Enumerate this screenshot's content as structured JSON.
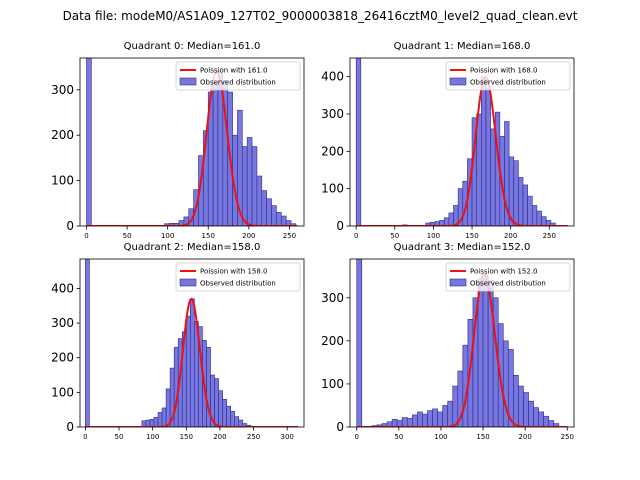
{
  "figure_title": "Data file: modeM0/AS1A09_127T02_9000003818_26416cztM0_level2_quad_clean.evt",
  "colors": {
    "bar_fill": "#7777dd",
    "bar_edge": "#2a2a90",
    "poisson_line": "#ee1111"
  },
  "chart_data": [
    {
      "type": "bar+line",
      "title": "Quadrant 0: Median=161.0",
      "legend": [
        "Poission with 161.0",
        "Observed distribution"
      ],
      "legend_position": "upper-right",
      "median": 161,
      "xlim": [
        -8,
        268
      ],
      "ylim": [
        0,
        370
      ],
      "xticks": [
        0,
        50,
        100,
        150,
        200,
        250
      ],
      "yticks": [
        0,
        100,
        200,
        300
      ],
      "bin_width": 6,
      "hist": [
        [
          0,
          370
        ],
        [
          96,
          5
        ],
        [
          102,
          6
        ],
        [
          108,
          6
        ],
        [
          114,
          12
        ],
        [
          120,
          20
        ],
        [
          126,
          38
        ],
        [
          132,
          80
        ],
        [
          138,
          155
        ],
        [
          144,
          210
        ],
        [
          150,
          295
        ],
        [
          156,
          315
        ],
        [
          162,
          340
        ],
        [
          168,
          320
        ],
        [
          174,
          295
        ],
        [
          180,
          200
        ],
        [
          186,
          255
        ],
        [
          192,
          175
        ],
        [
          198,
          195
        ],
        [
          204,
          175
        ],
        [
          210,
          110
        ],
        [
          216,
          78
        ],
        [
          222,
          60
        ],
        [
          228,
          45
        ],
        [
          234,
          30
        ],
        [
          240,
          22
        ],
        [
          246,
          12
        ],
        [
          252,
          5
        ]
      ]
    },
    {
      "type": "bar+line",
      "title": "Quadrant 1: Median=168.0",
      "legend": [
        "Poission with 168.0",
        "Observed distribution"
      ],
      "legend_position": "upper-right",
      "median": 168,
      "xlim": [
        -8,
        282
      ],
      "ylim": [
        0,
        450
      ],
      "xticks": [
        0,
        50,
        100,
        150,
        200,
        250
      ],
      "yticks": [
        0,
        100,
        200,
        300,
        400
      ],
      "bin_width": 6,
      "hist": [
        [
          0,
          450
        ],
        [
          60,
          3
        ],
        [
          90,
          8
        ],
        [
          96,
          10
        ],
        [
          102,
          12
        ],
        [
          108,
          15
        ],
        [
          114,
          22
        ],
        [
          120,
          35
        ],
        [
          126,
          55
        ],
        [
          132,
          100
        ],
        [
          138,
          120
        ],
        [
          144,
          180
        ],
        [
          150,
          290
        ],
        [
          156,
          300
        ],
        [
          162,
          400
        ],
        [
          168,
          370
        ],
        [
          174,
          260
        ],
        [
          180,
          305
        ],
        [
          186,
          240
        ],
        [
          192,
          280
        ],
        [
          198,
          185
        ],
        [
          204,
          175
        ],
        [
          210,
          130
        ],
        [
          216,
          110
        ],
        [
          222,
          80
        ],
        [
          228,
          55
        ],
        [
          234,
          40
        ],
        [
          240,
          25
        ],
        [
          246,
          15
        ],
        [
          252,
          8
        ]
      ]
    },
    {
      "type": "bar+line",
      "title": "Quadrant 2: Median=158.0",
      "legend": [
        "Poission with 158.0",
        "Observed distribution"
      ],
      "legend_position": "upper-right",
      "median": 158,
      "xlim": [
        -8,
        325
      ],
      "ylim": [
        0,
        485
      ],
      "xticks": [
        0,
        50,
        100,
        150,
        200,
        250,
        300
      ],
      "yticks": [
        0,
        100,
        200,
        300,
        400
      ],
      "bin_width": 6,
      "hist": [
        [
          0,
          485
        ],
        [
          84,
          18
        ],
        [
          90,
          20
        ],
        [
          96,
          22
        ],
        [
          102,
          28
        ],
        [
          108,
          42
        ],
        [
          114,
          55
        ],
        [
          120,
          110
        ],
        [
          126,
          170
        ],
        [
          132,
          230
        ],
        [
          138,
          255
        ],
        [
          144,
          275
        ],
        [
          150,
          320
        ],
        [
          156,
          370
        ],
        [
          162,
          305
        ],
        [
          168,
          290
        ],
        [
          174,
          250
        ],
        [
          180,
          230
        ],
        [
          186,
          150
        ],
        [
          192,
          140
        ],
        [
          198,
          105
        ],
        [
          204,
          80
        ],
        [
          210,
          60
        ],
        [
          216,
          45
        ],
        [
          222,
          30
        ],
        [
          228,
          20
        ],
        [
          234,
          10
        ],
        [
          240,
          5
        ]
      ]
    },
    {
      "type": "bar+line",
      "title": "Quadrant 3: Median=152.0",
      "legend": [
        "Poission with 152.0",
        "Observed distribution"
      ],
      "legend_position": "upper-right",
      "median": 152,
      "xlim": [
        -8,
        258
      ],
      "ylim": [
        0,
        390
      ],
      "xticks": [
        0,
        50,
        100,
        150,
        200,
        250
      ],
      "yticks": [
        0,
        100,
        200,
        300
      ],
      "bin_width": 6,
      "hist": [
        [
          0,
          390
        ],
        [
          18,
          3
        ],
        [
          24,
          5
        ],
        [
          30,
          8
        ],
        [
          36,
          12
        ],
        [
          42,
          18
        ],
        [
          48,
          15
        ],
        [
          54,
          22
        ],
        [
          60,
          20
        ],
        [
          66,
          28
        ],
        [
          72,
          35
        ],
        [
          78,
          30
        ],
        [
          84,
          38
        ],
        [
          90,
          42
        ],
        [
          96,
          35
        ],
        [
          102,
          50
        ],
        [
          108,
          60
        ],
        [
          114,
          95
        ],
        [
          120,
          130
        ],
        [
          126,
          190
        ],
        [
          132,
          250
        ],
        [
          138,
          300
        ],
        [
          144,
          345
        ],
        [
          150,
          355
        ],
        [
          156,
          340
        ],
        [
          162,
          300
        ],
        [
          168,
          240
        ],
        [
          174,
          200
        ],
        [
          180,
          180
        ],
        [
          186,
          120
        ],
        [
          192,
          95
        ],
        [
          198,
          80
        ],
        [
          204,
          60
        ],
        [
          210,
          45
        ],
        [
          216,
          35
        ],
        [
          222,
          25
        ],
        [
          228,
          15
        ],
        [
          234,
          8
        ]
      ]
    }
  ]
}
